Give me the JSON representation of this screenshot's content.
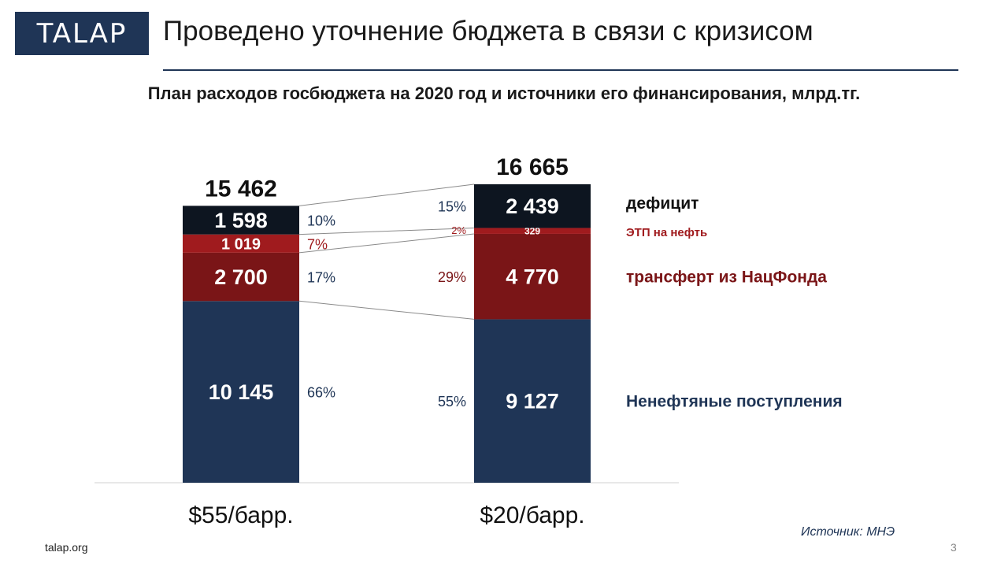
{
  "header": {
    "logo_text": "TALAP",
    "title": "Проведено уточнение бюджета в связи с кризисом"
  },
  "footer": {
    "site": "talap.org",
    "source": "Источник: МНЭ",
    "page": "3"
  },
  "colors": {
    "navy": "#1f3556",
    "dark_red": "#7a1517",
    "red": "#a01b1e",
    "black": "#0d1520",
    "legend_navy": "#1f3556",
    "legend_red": "#7a1517",
    "legend_black": "#111111"
  },
  "chart_data": {
    "type": "bar",
    "stacked": true,
    "title": "План расходов госбюджета на 2020 год и источники его финансирования, млрд.тг.",
    "categories": [
      "$55/барр.",
      "$20/барр."
    ],
    "totals": [
      "15 462",
      "16 665"
    ],
    "series": [
      {
        "name": "Ненефтяные поступления",
        "values": [
          10145,
          9127
        ],
        "labels": [
          "10 145",
          "9 127"
        ],
        "shares": [
          "66%",
          "55%"
        ],
        "color": "#1f3556",
        "text_color": "#ffffff",
        "legend_color": "#1f3556"
      },
      {
        "name": "трансферт из НацФонда",
        "values": [
          2700,
          4770
        ],
        "labels": [
          "2 700",
          "4 770"
        ],
        "shares": [
          "17%",
          "29%"
        ],
        "color": "#7a1517",
        "text_color": "#ffffff",
        "legend_color": "#7a1517"
      },
      {
        "name": "ЭТП на нефть",
        "values": [
          1019,
          329
        ],
        "labels": [
          "1 019",
          "329"
        ],
        "shares": [
          "7%",
          "2%"
        ],
        "color": "#a01b1e",
        "text_color": "#ffffff",
        "legend_color": "#a01b1e"
      },
      {
        "name": "дефицит",
        "values": [
          1598,
          2439
        ],
        "labels": [
          "1 598",
          "2 439"
        ],
        "shares": [
          "10%",
          "15%"
        ],
        "color": "#0d1520",
        "text_color": "#ffffff",
        "legend_color": "#111111"
      }
    ],
    "legend_position": "right",
    "grid": false
  }
}
